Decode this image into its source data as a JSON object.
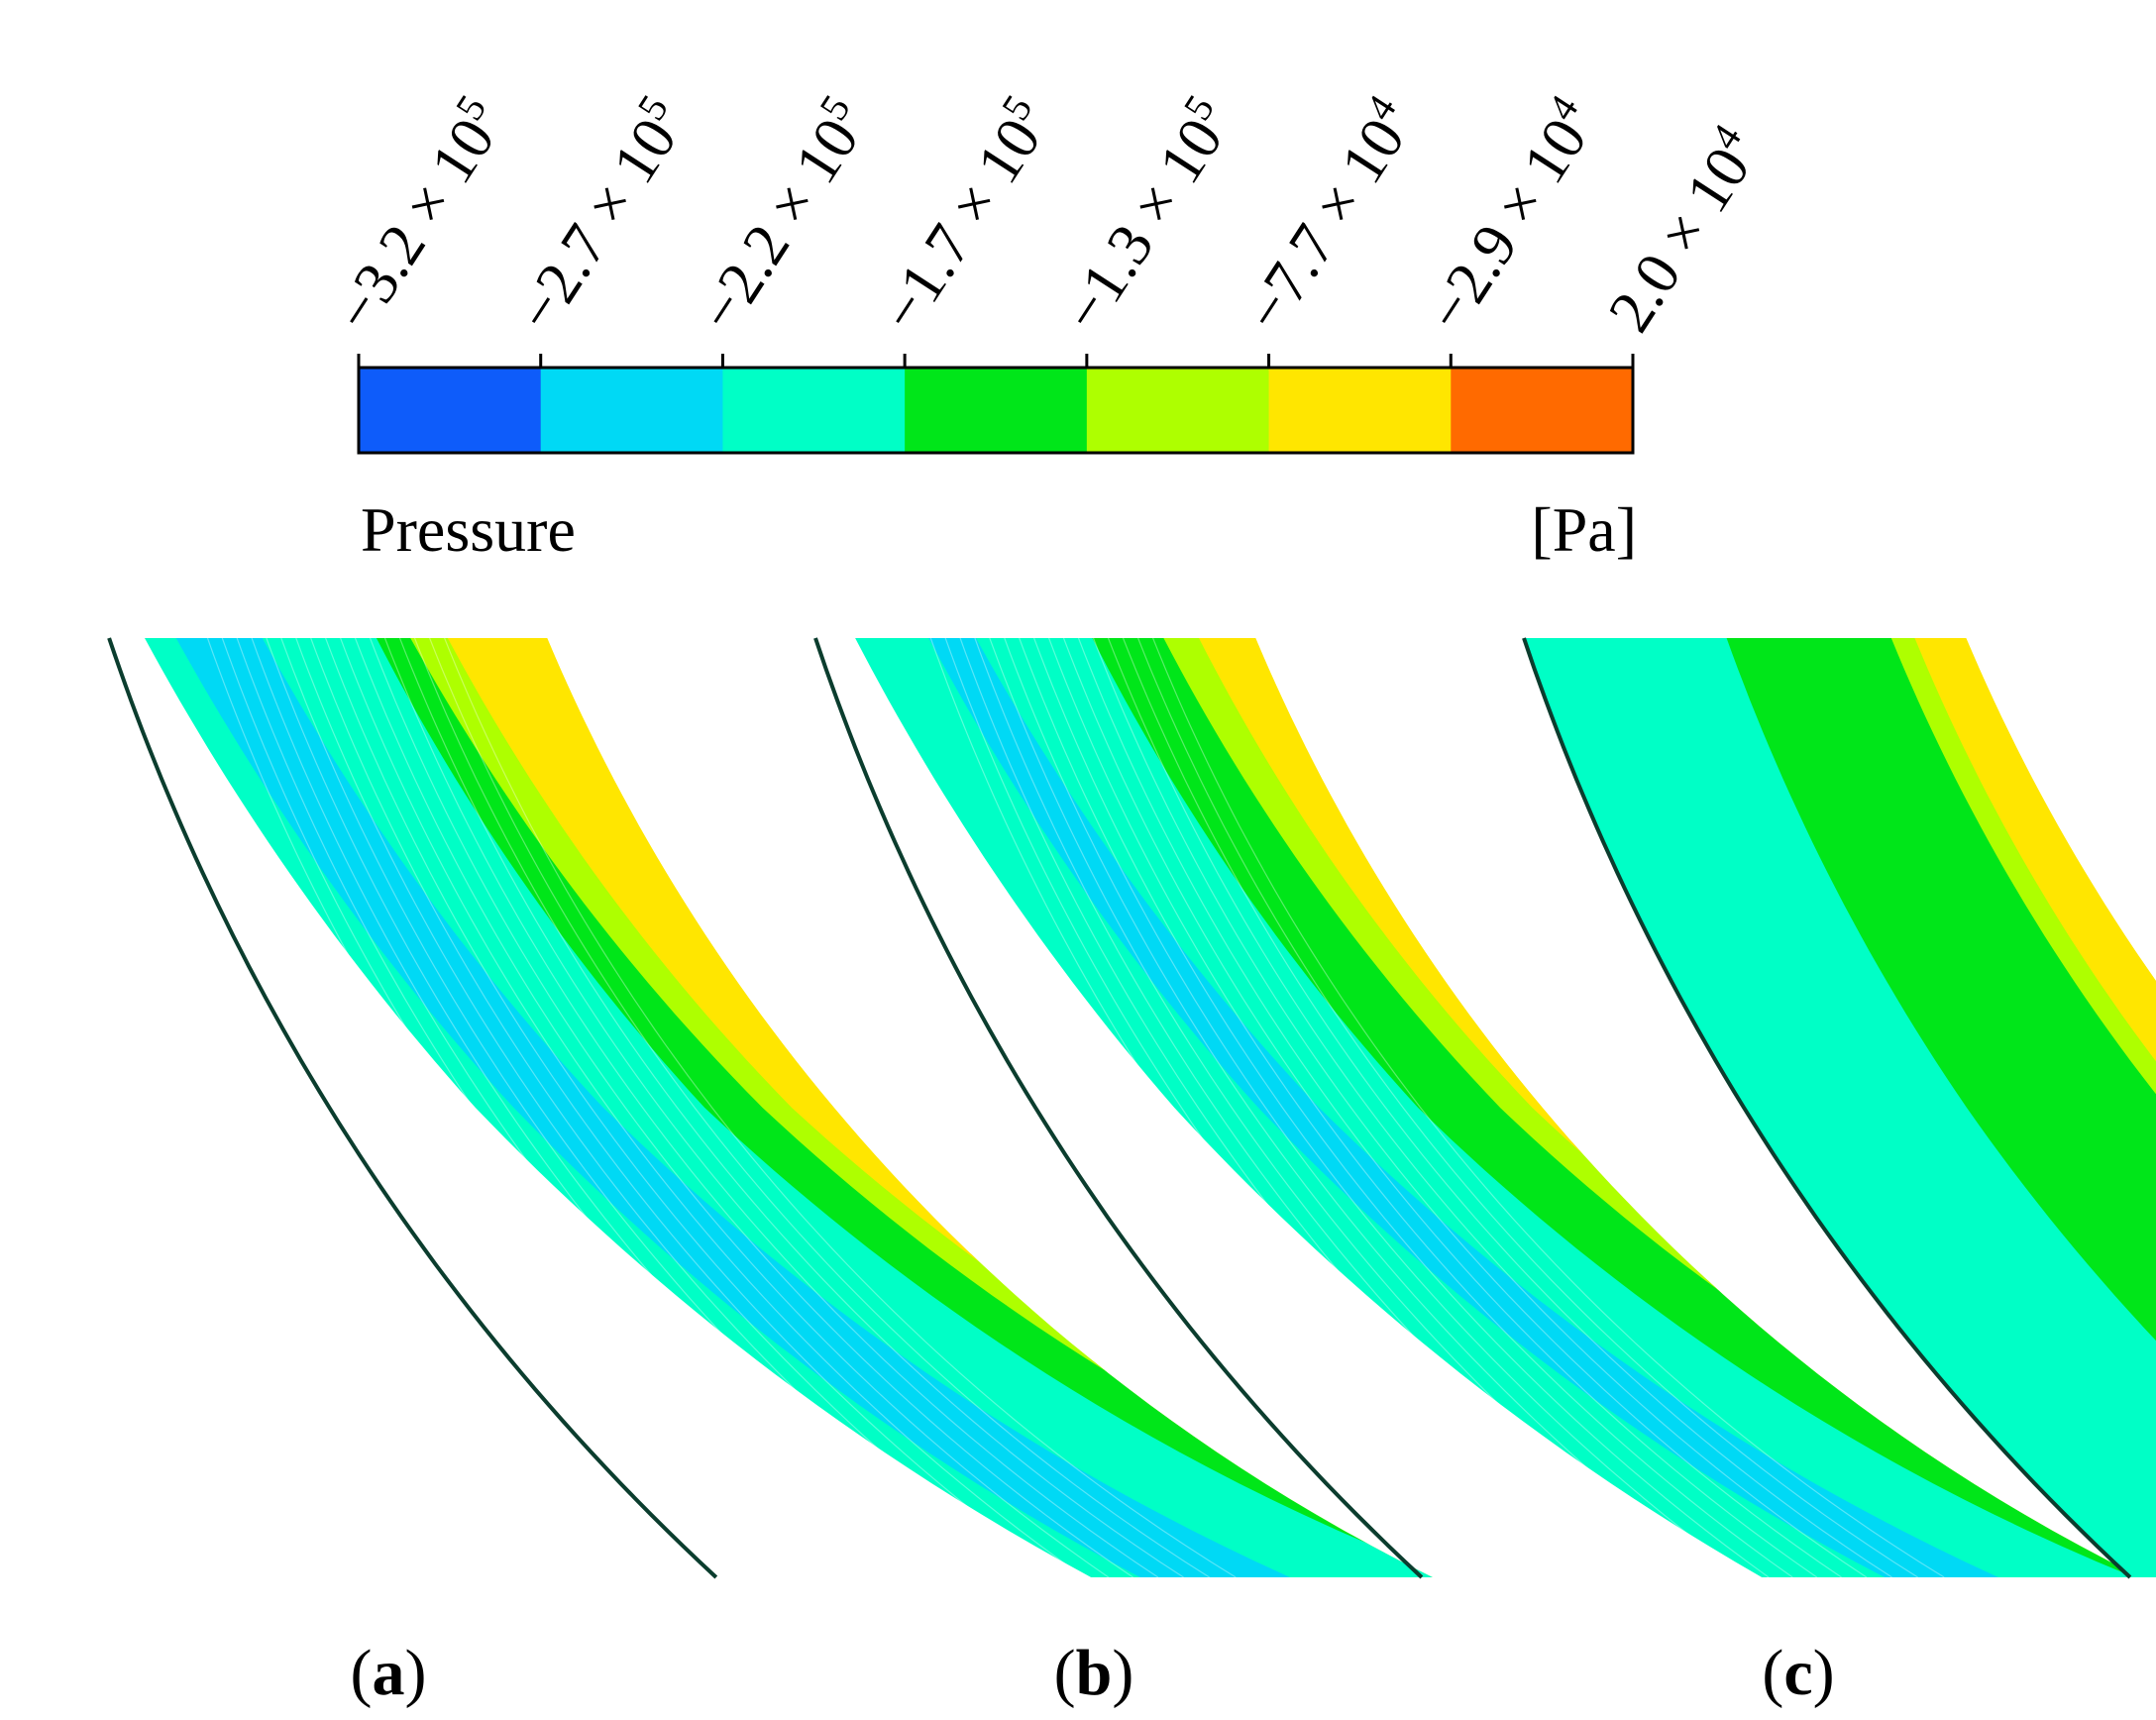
{
  "legend": {
    "quantity_label": "Pressure",
    "unit_label": "[Pa]",
    "bins": [
      {
        "color": "#0E5CFA",
        "name": "blue"
      },
      {
        "color": "#00D9F5",
        "name": "cyan"
      },
      {
        "color": "#00FFC6",
        "name": "aquamarine"
      },
      {
        "color": "#00E619",
        "name": "green"
      },
      {
        "color": "#AEFF00",
        "name": "yellow-green"
      },
      {
        "color": "#FFE600",
        "name": "yellow"
      },
      {
        "color": "#FF6A00",
        "name": "orange"
      }
    ],
    "ticks": [
      {
        "mantissa": "−3.2 × 10",
        "exponent": "5",
        "value": -320000
      },
      {
        "mantissa": "−2.7 × 10",
        "exponent": "5",
        "value": -270000
      },
      {
        "mantissa": "−2.2 × 10",
        "exponent": "5",
        "value": -220000
      },
      {
        "mantissa": "−1.7 × 10",
        "exponent": "5",
        "value": -170000
      },
      {
        "mantissa": "−1.3 × 10",
        "exponent": "5",
        "value": -130000
      },
      {
        "mantissa": "−7.7 × 10",
        "exponent": "4",
        "value": -77000
      },
      {
        "mantissa": "−2.9 × 10",
        "exponent": "4",
        "value": -29000
      },
      {
        "mantissa": "2.0 × 10",
        "exponent": "4",
        "value": 20000
      }
    ]
  },
  "panels": [
    {
      "id": "a",
      "caption_open": "(",
      "caption_letter": "a",
      "caption_close": ")",
      "bands": [
        {
          "color": "#00FFC6",
          "name": "aquamarine-band"
        },
        {
          "color": "#00D9F5",
          "name": "cyan-band"
        },
        {
          "color": "#00FFC6",
          "name": "aquamarine-band"
        },
        {
          "color": "#00E619",
          "name": "green-band"
        },
        {
          "color": "#AEFF00",
          "name": "yellow-green-band"
        },
        {
          "color": "#FFE600",
          "name": "yellow-band"
        }
      ]
    },
    {
      "id": "b",
      "caption_open": "(",
      "caption_letter": "b",
      "caption_close": ")",
      "bands": [
        {
          "color": "#00FFC6",
          "name": "aquamarine-band"
        },
        {
          "color": "#00D9F5",
          "name": "cyan-band"
        },
        {
          "color": "#00FFC6",
          "name": "aquamarine-band"
        },
        {
          "color": "#00E619",
          "name": "green-band"
        },
        {
          "color": "#AEFF00",
          "name": "yellow-green-band"
        },
        {
          "color": "#FFE600",
          "name": "yellow-band"
        }
      ]
    },
    {
      "id": "c",
      "caption_open": "(",
      "caption_letter": "c",
      "caption_close": ")",
      "bands": [
        {
          "color": "#00FFC6",
          "name": "aquamarine-band"
        },
        {
          "color": "#00E619",
          "name": "green-band"
        },
        {
          "color": "#AEFF00",
          "name": "yellow-green-band"
        },
        {
          "color": "#FFE600",
          "name": "yellow-band"
        }
      ]
    }
  ]
}
